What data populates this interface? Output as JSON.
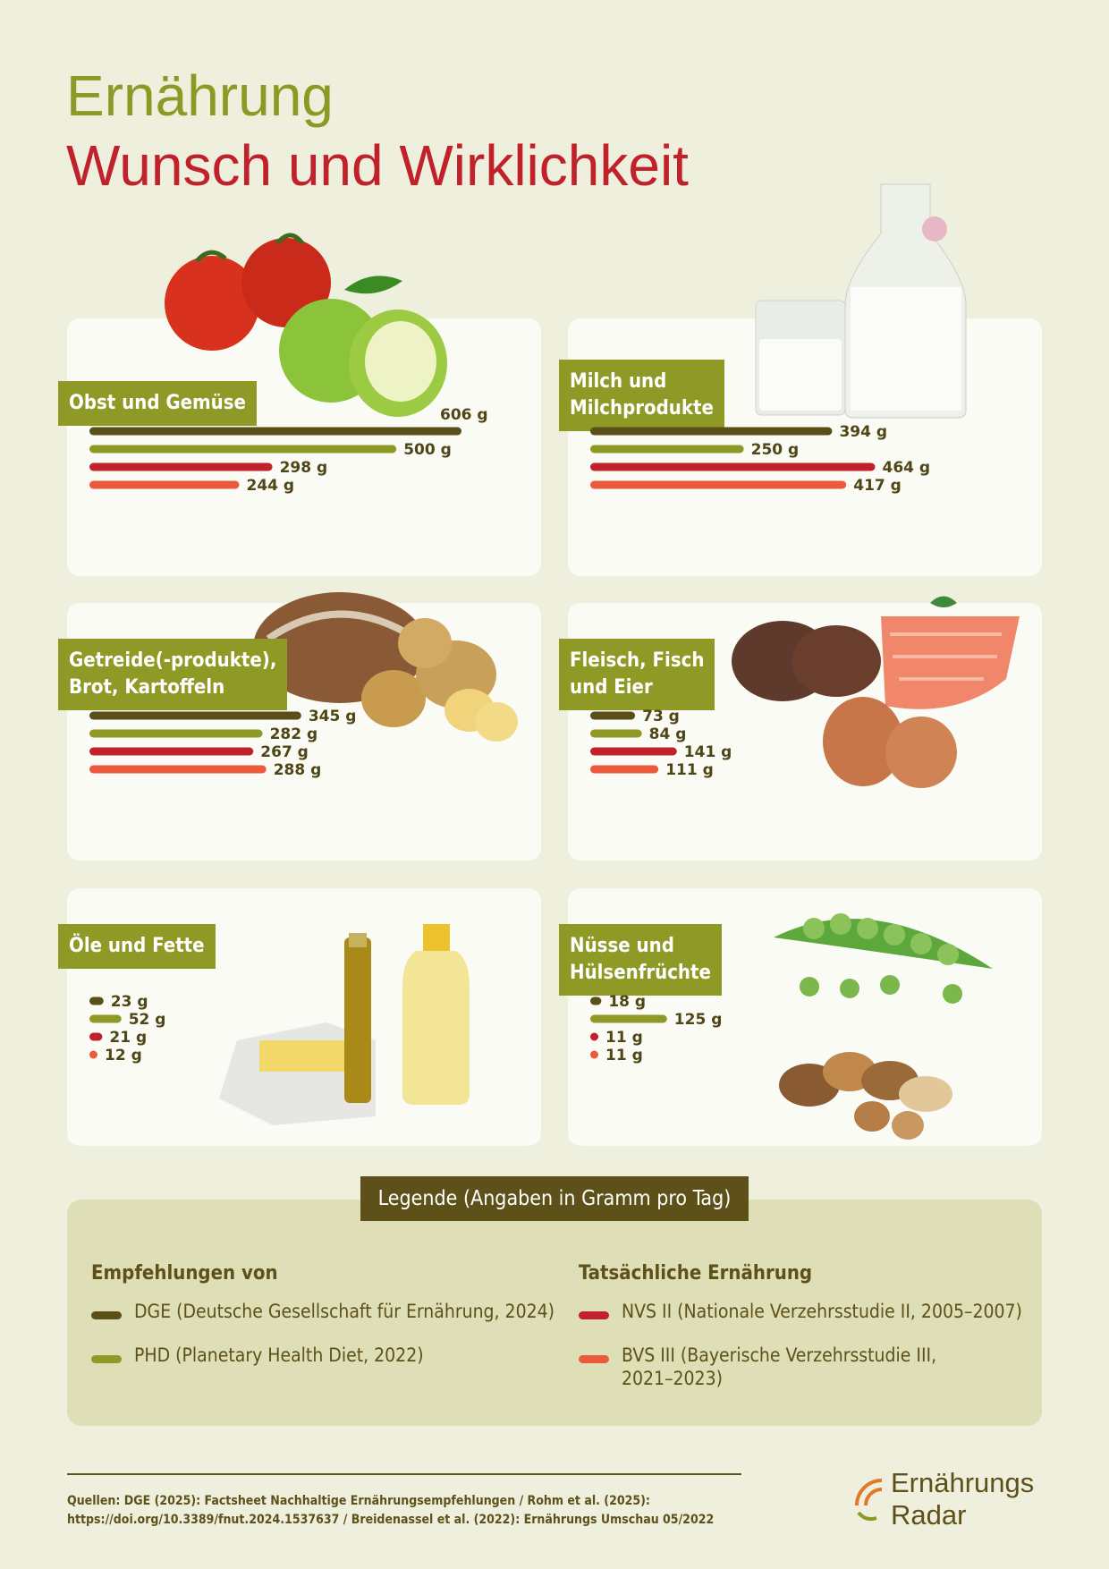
{
  "header": {
    "title_line1": "Ernährung",
    "title_line2": "Wunsch und Wirklichkeit"
  },
  "colors": {
    "dge": "#5b4f19",
    "phd": "#8e9a25",
    "nvs": "#c0212a",
    "bvs": "#ea5b3c"
  },
  "chart_data": {
    "type": "bar",
    "orientation": "horizontal",
    "unit": "g",
    "series_names": [
      "DGE (Deutsche Gesellschaft für Ernährung, 2024)",
      "PHD (Planetary Health Diet, 2022)",
      "NVS II (Nationale Verzehrsstudie II, 2005–2007)",
      "BVS III (Bayerische Verzehrsstudie III, 2021–2023)"
    ],
    "panels": [
      {
        "category": "Obst und Gemüse",
        "values": [
          606,
          500,
          298,
          244
        ],
        "labels": [
          "606 g",
          "500 g",
          "298 g",
          "244 g"
        ]
      },
      {
        "category": "Milch und Milchprodukte",
        "values": [
          394,
          250,
          464,
          417
        ],
        "labels": [
          "394 g",
          "250 g",
          "464 g",
          "417 g"
        ]
      },
      {
        "category": "Getreide(-produkte), Brot, Kartoffeln",
        "values": [
          345,
          282,
          267,
          288
        ],
        "labels": [
          "345 g",
          "282 g",
          "267 g",
          "288 g"
        ]
      },
      {
        "category": "Fleisch, Fisch und Eier",
        "values": [
          73,
          84,
          141,
          111
        ],
        "labels": [
          "73 g",
          "84 g",
          "141 g",
          "111 g"
        ]
      },
      {
        "category": "Öle und Fette",
        "values": [
          23,
          52,
          21,
          12
        ],
        "labels": [
          "23 g",
          "52 g",
          "21 g",
          "12 g"
        ]
      },
      {
        "category": "Nüsse und Hülsenfrüchte",
        "values": [
          18,
          125,
          11,
          11
        ],
        "labels": [
          "18 g",
          "125 g",
          "11 g",
          "11 g"
        ]
      }
    ]
  },
  "cards": [
    {
      "label": "Obst und Gemüse"
    },
    {
      "label": "Milch und\nMilchprodukte"
    },
    {
      "label": "Getreide(-produkte),\nBrot, Kartoffeln"
    },
    {
      "label": "Fleisch, Fisch\nund Eier"
    },
    {
      "label": "Öle und Fette"
    },
    {
      "label": "Nüsse und\nHülsenfrüchte"
    }
  ],
  "legend": {
    "title": "Legende (Angaben in Gramm pro Tag)",
    "left_heading": "Empfehlungen von",
    "right_heading": "Tatsächliche Ernährung",
    "items": [
      "DGE (Deutsche Gesellschaft für Ernährung, 2024)",
      "PHD (Planetary Health Diet, 2022)",
      "NVS II (Nationale Verzehrsstudie II, 2005–2007)",
      "BVS III (Bayerische Verzehrsstudie III,\n2021–2023)"
    ]
  },
  "footer": {
    "sources_line1": "Quellen: DGE (2025): Factsheet Nachhaltige Ernährungsempfehlungen / Rohm et al. (2025):",
    "sources_line2": "https://doi.org/10.3389/fnut.2024.1537637 / Breidenassel et al. (2022): Ernährungs Umschau 05/2022",
    "brand_line1": "Ernährungs",
    "brand_line2": "Radar"
  }
}
